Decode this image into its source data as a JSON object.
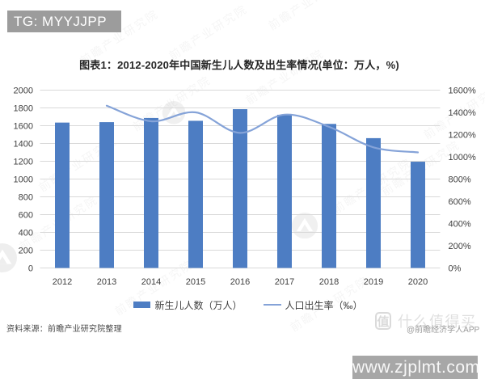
{
  "badges": {
    "tg": "TG: MYYJJPP",
    "url": "www.zjplmt.com"
  },
  "title": "图表1：2012-2020年中国新生儿人数及出生率情况(单位：万人，%)",
  "source_note": "资料来源：前瞻产业研究院整理",
  "watermarks": {
    "tile_text": "前瞻产业研究院",
    "zdm_logo": "值",
    "zdm_text": "什么值得买",
    "credit": "@前瞻经济学人APP"
  },
  "chart_data": {
    "type": "bar",
    "subtype": "bar+line combo",
    "categories": [
      "2012",
      "2013",
      "2014",
      "2015",
      "2016",
      "2017",
      "2018",
      "2019",
      "2020"
    ],
    "series": [
      {
        "name": "新生儿人数（万人）",
        "type": "bar",
        "axis": "left",
        "color": "#4d7dc3",
        "values": [
          1635,
          1640,
          1687,
          1655,
          1786,
          1723,
          1620,
          1460,
          1195
        ]
      },
      {
        "name": "人口出生率（‰）",
        "type": "line",
        "axis": "right",
        "color": "#85a3d8",
        "smooth": true,
        "values": [
          null,
          1460,
          1320,
          1400,
          1215,
          1380,
          1270,
          1085,
          1040
        ]
      }
    ],
    "left_axis": {
      "min": 0,
      "max": 2000,
      "step": 200,
      "tick_labels": [
        "0",
        "200",
        "400",
        "600",
        "800",
        "1000",
        "1200",
        "1400",
        "1600",
        "1800",
        "2000"
      ]
    },
    "right_axis": {
      "min": 0,
      "max": 1600,
      "step": 200,
      "tick_labels": [
        "0%",
        "200%",
        "400%",
        "600%",
        "800%",
        "1000%",
        "1200%",
        "1400%",
        "1600%"
      ]
    },
    "grid": true,
    "legend_position": "bottom",
    "gridline_color": "#d9d9d9",
    "axis_label_color": "#404040"
  }
}
